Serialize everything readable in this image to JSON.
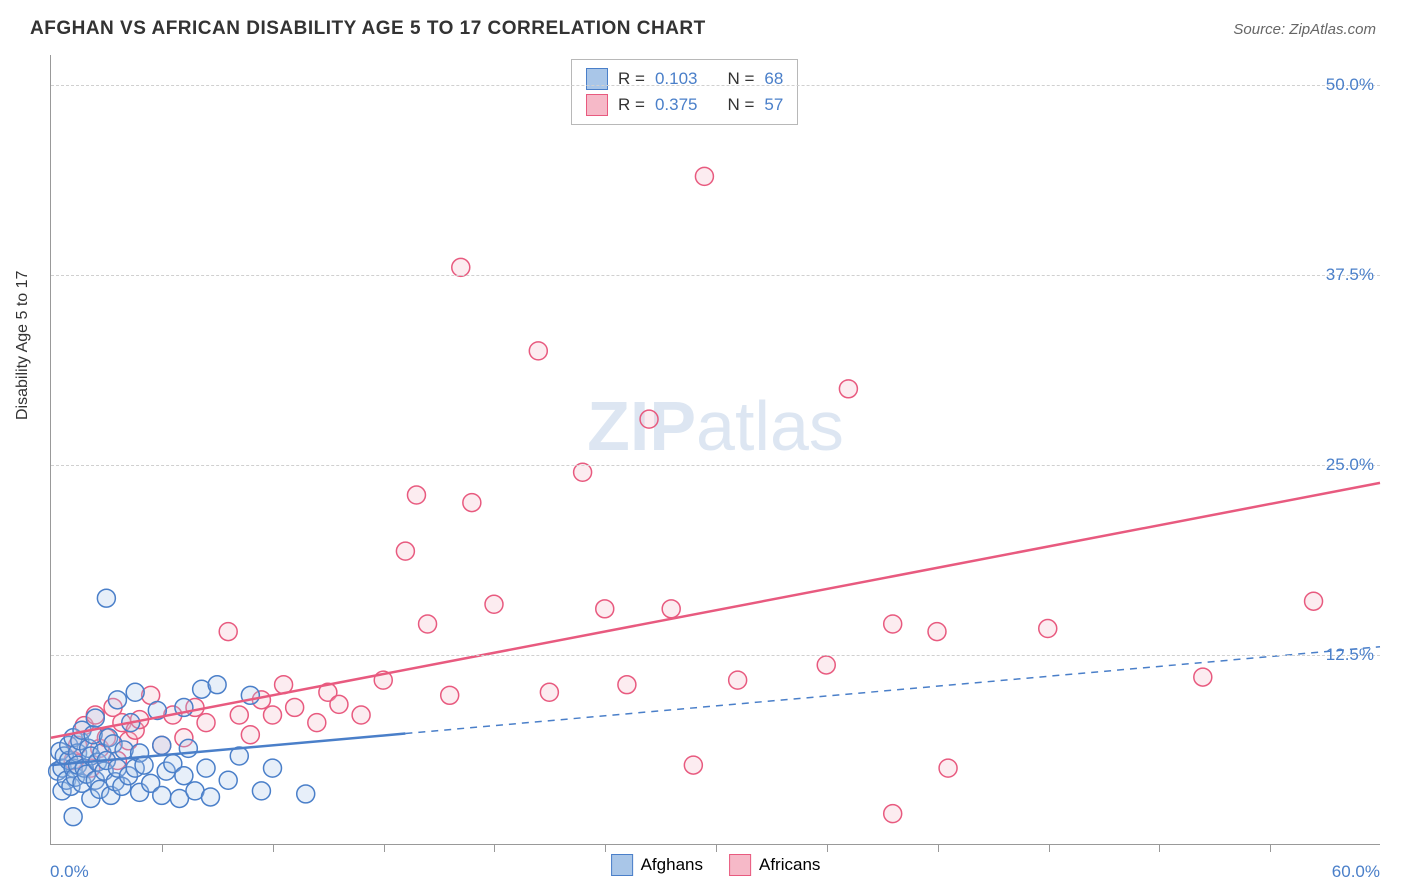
{
  "header": {
    "title": "AFGHAN VS AFRICAN DISABILITY AGE 5 TO 17 CORRELATION CHART",
    "source_prefix": "Source: ",
    "source_name": "ZipAtlas.com"
  },
  "watermark": {
    "zip": "ZIP",
    "atlas": "atlas"
  },
  "chart": {
    "type": "scatter",
    "y_axis_label": "Disability Age 5 to 17",
    "xlim": [
      0,
      60
    ],
    "ylim": [
      0,
      52
    ],
    "x_min_label": "0.0%",
    "x_max_label": "60.0%",
    "y_ticks": [
      {
        "value": 12.5,
        "label": "12.5%"
      },
      {
        "value": 25.0,
        "label": "25.0%"
      },
      {
        "value": 37.5,
        "label": "37.5%"
      },
      {
        "value": 50.0,
        "label": "50.0%"
      }
    ],
    "x_tick_step": 5,
    "grid_dashes": [
      0,
      12.5,
      25.0,
      37.5,
      50.0
    ],
    "background_color": "#ffffff",
    "grid_color": "#d0d0d0",
    "axis_color": "#999999",
    "marker_radius": 9,
    "marker_stroke_width": 1.5,
    "marker_fill_opacity": 0.28,
    "series": {
      "afghans": {
        "label": "Afghans",
        "stroke": "#4a7fc9",
        "fill": "#a9c6e8",
        "R": "0.103",
        "N": "68",
        "trend": {
          "y_at_xmin": 5.2,
          "y_at_xmax": 13.0,
          "solid_cut_x": 16,
          "width": 2.5
        },
        "points": [
          [
            0.3,
            4.8
          ],
          [
            0.4,
            6.1
          ],
          [
            0.5,
            5.0
          ],
          [
            0.5,
            3.5
          ],
          [
            0.6,
            5.8
          ],
          [
            0.7,
            4.2
          ],
          [
            0.8,
            5.5
          ],
          [
            0.8,
            6.5
          ],
          [
            0.9,
            3.8
          ],
          [
            1.0,
            5.0
          ],
          [
            1.0,
            7.0
          ],
          [
            1.1,
            4.4
          ],
          [
            1.2,
            6.0
          ],
          [
            1.2,
            5.2
          ],
          [
            1.3,
            6.8
          ],
          [
            1.4,
            4.0
          ],
          [
            1.4,
            7.5
          ],
          [
            1.5,
            5.0
          ],
          [
            1.6,
            4.6
          ],
          [
            1.7,
            6.3
          ],
          [
            1.8,
            3.0
          ],
          [
            1.8,
            5.8
          ],
          [
            1.9,
            7.2
          ],
          [
            2.0,
            4.2
          ],
          [
            2.0,
            8.3
          ],
          [
            2.1,
            5.4
          ],
          [
            2.2,
            3.6
          ],
          [
            2.3,
            6.0
          ],
          [
            2.4,
            4.8
          ],
          [
            2.5,
            5.5
          ],
          [
            2.6,
            7.0
          ],
          [
            2.7,
            3.2
          ],
          [
            2.8,
            6.6
          ],
          [
            2.9,
            4.1
          ],
          [
            3.0,
            5.0
          ],
          [
            3.0,
            9.5
          ],
          [
            3.2,
            3.8
          ],
          [
            3.3,
            6.2
          ],
          [
            3.5,
            4.5
          ],
          [
            3.6,
            8.0
          ],
          [
            3.8,
            5.0
          ],
          [
            3.8,
            10.0
          ],
          [
            4.0,
            3.4
          ],
          [
            4.0,
            6.0
          ],
          [
            4.2,
            5.2
          ],
          [
            4.5,
            4.0
          ],
          [
            4.8,
            8.8
          ],
          [
            5.0,
            3.2
          ],
          [
            5.0,
            6.5
          ],
          [
            5.2,
            4.8
          ],
          [
            5.5,
            5.3
          ],
          [
            5.8,
            3.0
          ],
          [
            6.0,
            9.0
          ],
          [
            6.0,
            4.5
          ],
          [
            6.2,
            6.3
          ],
          [
            6.5,
            3.5
          ],
          [
            6.8,
            10.2
          ],
          [
            7.0,
            5.0
          ],
          [
            7.2,
            3.1
          ],
          [
            7.5,
            10.5
          ],
          [
            8.0,
            4.2
          ],
          [
            8.5,
            5.8
          ],
          [
            9.0,
            9.8
          ],
          [
            9.5,
            3.5
          ],
          [
            10.0,
            5.0
          ],
          [
            11.5,
            3.3
          ],
          [
            2.5,
            16.2
          ],
          [
            1.0,
            1.8
          ]
        ]
      },
      "africans": {
        "label": "Africans",
        "stroke": "#e85a7f",
        "fill": "#f6b9c8",
        "R": "0.375",
        "N": "57",
        "trend": {
          "y_at_xmin": 7.0,
          "y_at_xmax": 23.8,
          "solid_cut_x": 60,
          "width": 2.5
        },
        "points": [
          [
            1.0,
            5.5
          ],
          [
            1.2,
            6.5
          ],
          [
            1.5,
            7.8
          ],
          [
            1.8,
            5.0
          ],
          [
            2.0,
            8.5
          ],
          [
            2.2,
            6.3
          ],
          [
            2.5,
            7.0
          ],
          [
            2.8,
            9.0
          ],
          [
            3.0,
            5.5
          ],
          [
            3.2,
            8.0
          ],
          [
            3.5,
            6.8
          ],
          [
            3.8,
            7.5
          ],
          [
            4.0,
            8.2
          ],
          [
            4.5,
            9.8
          ],
          [
            5.0,
            6.5
          ],
          [
            5.5,
            8.5
          ],
          [
            6.0,
            7.0
          ],
          [
            6.5,
            9.0
          ],
          [
            7.0,
            8.0
          ],
          [
            8.0,
            14.0
          ],
          [
            8.5,
            8.5
          ],
          [
            9.0,
            7.2
          ],
          [
            9.5,
            9.5
          ],
          [
            10.0,
            8.5
          ],
          [
            10.5,
            10.5
          ],
          [
            11.0,
            9.0
          ],
          [
            12.0,
            8.0
          ],
          [
            12.5,
            10.0
          ],
          [
            13.0,
            9.2
          ],
          [
            14.0,
            8.5
          ],
          [
            15.0,
            10.8
          ],
          [
            16.0,
            19.3
          ],
          [
            16.5,
            23.0
          ],
          [
            17.0,
            14.5
          ],
          [
            18.0,
            9.8
          ],
          [
            18.5,
            38.0
          ],
          [
            19.0,
            22.5
          ],
          [
            20.0,
            15.8
          ],
          [
            22.0,
            32.5
          ],
          [
            22.5,
            10.0
          ],
          [
            24.0,
            24.5
          ],
          [
            25.0,
            15.5
          ],
          [
            26.0,
            10.5
          ],
          [
            27.0,
            28.0
          ],
          [
            28.0,
            15.5
          ],
          [
            29.0,
            5.2
          ],
          [
            29.5,
            44.0
          ],
          [
            31.0,
            10.8
          ],
          [
            35.0,
            11.8
          ],
          [
            36.0,
            30.0
          ],
          [
            38.0,
            14.5
          ],
          [
            40.0,
            14.0
          ],
          [
            40.5,
            5.0
          ],
          [
            38.0,
            2.0
          ],
          [
            45.0,
            14.2
          ],
          [
            52.0,
            11.0
          ],
          [
            57.0,
            16.0
          ]
        ]
      }
    }
  },
  "legend_bottom": [
    {
      "key": "afghans",
      "label": "Afghans"
    },
    {
      "key": "africans",
      "label": "Africans"
    }
  ]
}
